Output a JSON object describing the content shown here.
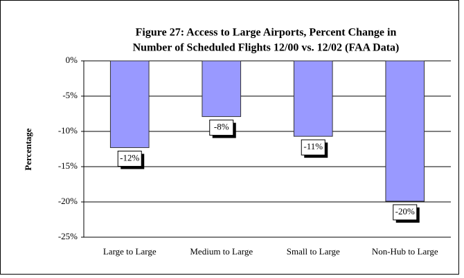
{
  "chart_data": {
    "type": "bar",
    "title": [
      "Figure 27:  Access to Large Airports, Percent Change in",
      "Number of Scheduled Flights 12/00 vs. 12/02 (FAA Data)"
    ],
    "y_label": "Percentage",
    "categories": [
      "Large to Large",
      "Medium to Large",
      "Small to Large",
      "Non-Hub to Large"
    ],
    "values": [
      -12.3,
      -7.9,
      -10.7,
      -19.9
    ],
    "value_labels": [
      "-12%",
      "-8%",
      "-11%",
      "-20%"
    ],
    "color": "#9999ff",
    "ylim": [
      -25,
      0
    ],
    "yticks": [
      {
        "value": 0,
        "label": "0%"
      },
      {
        "value": -5,
        "label": "-5%"
      },
      {
        "value": -10,
        "label": "-10%"
      },
      {
        "value": -15,
        "label": "-15%"
      },
      {
        "value": -20,
        "label": "-20%"
      },
      {
        "value": -25,
        "label": "-25%"
      }
    ],
    "grid": true
  }
}
